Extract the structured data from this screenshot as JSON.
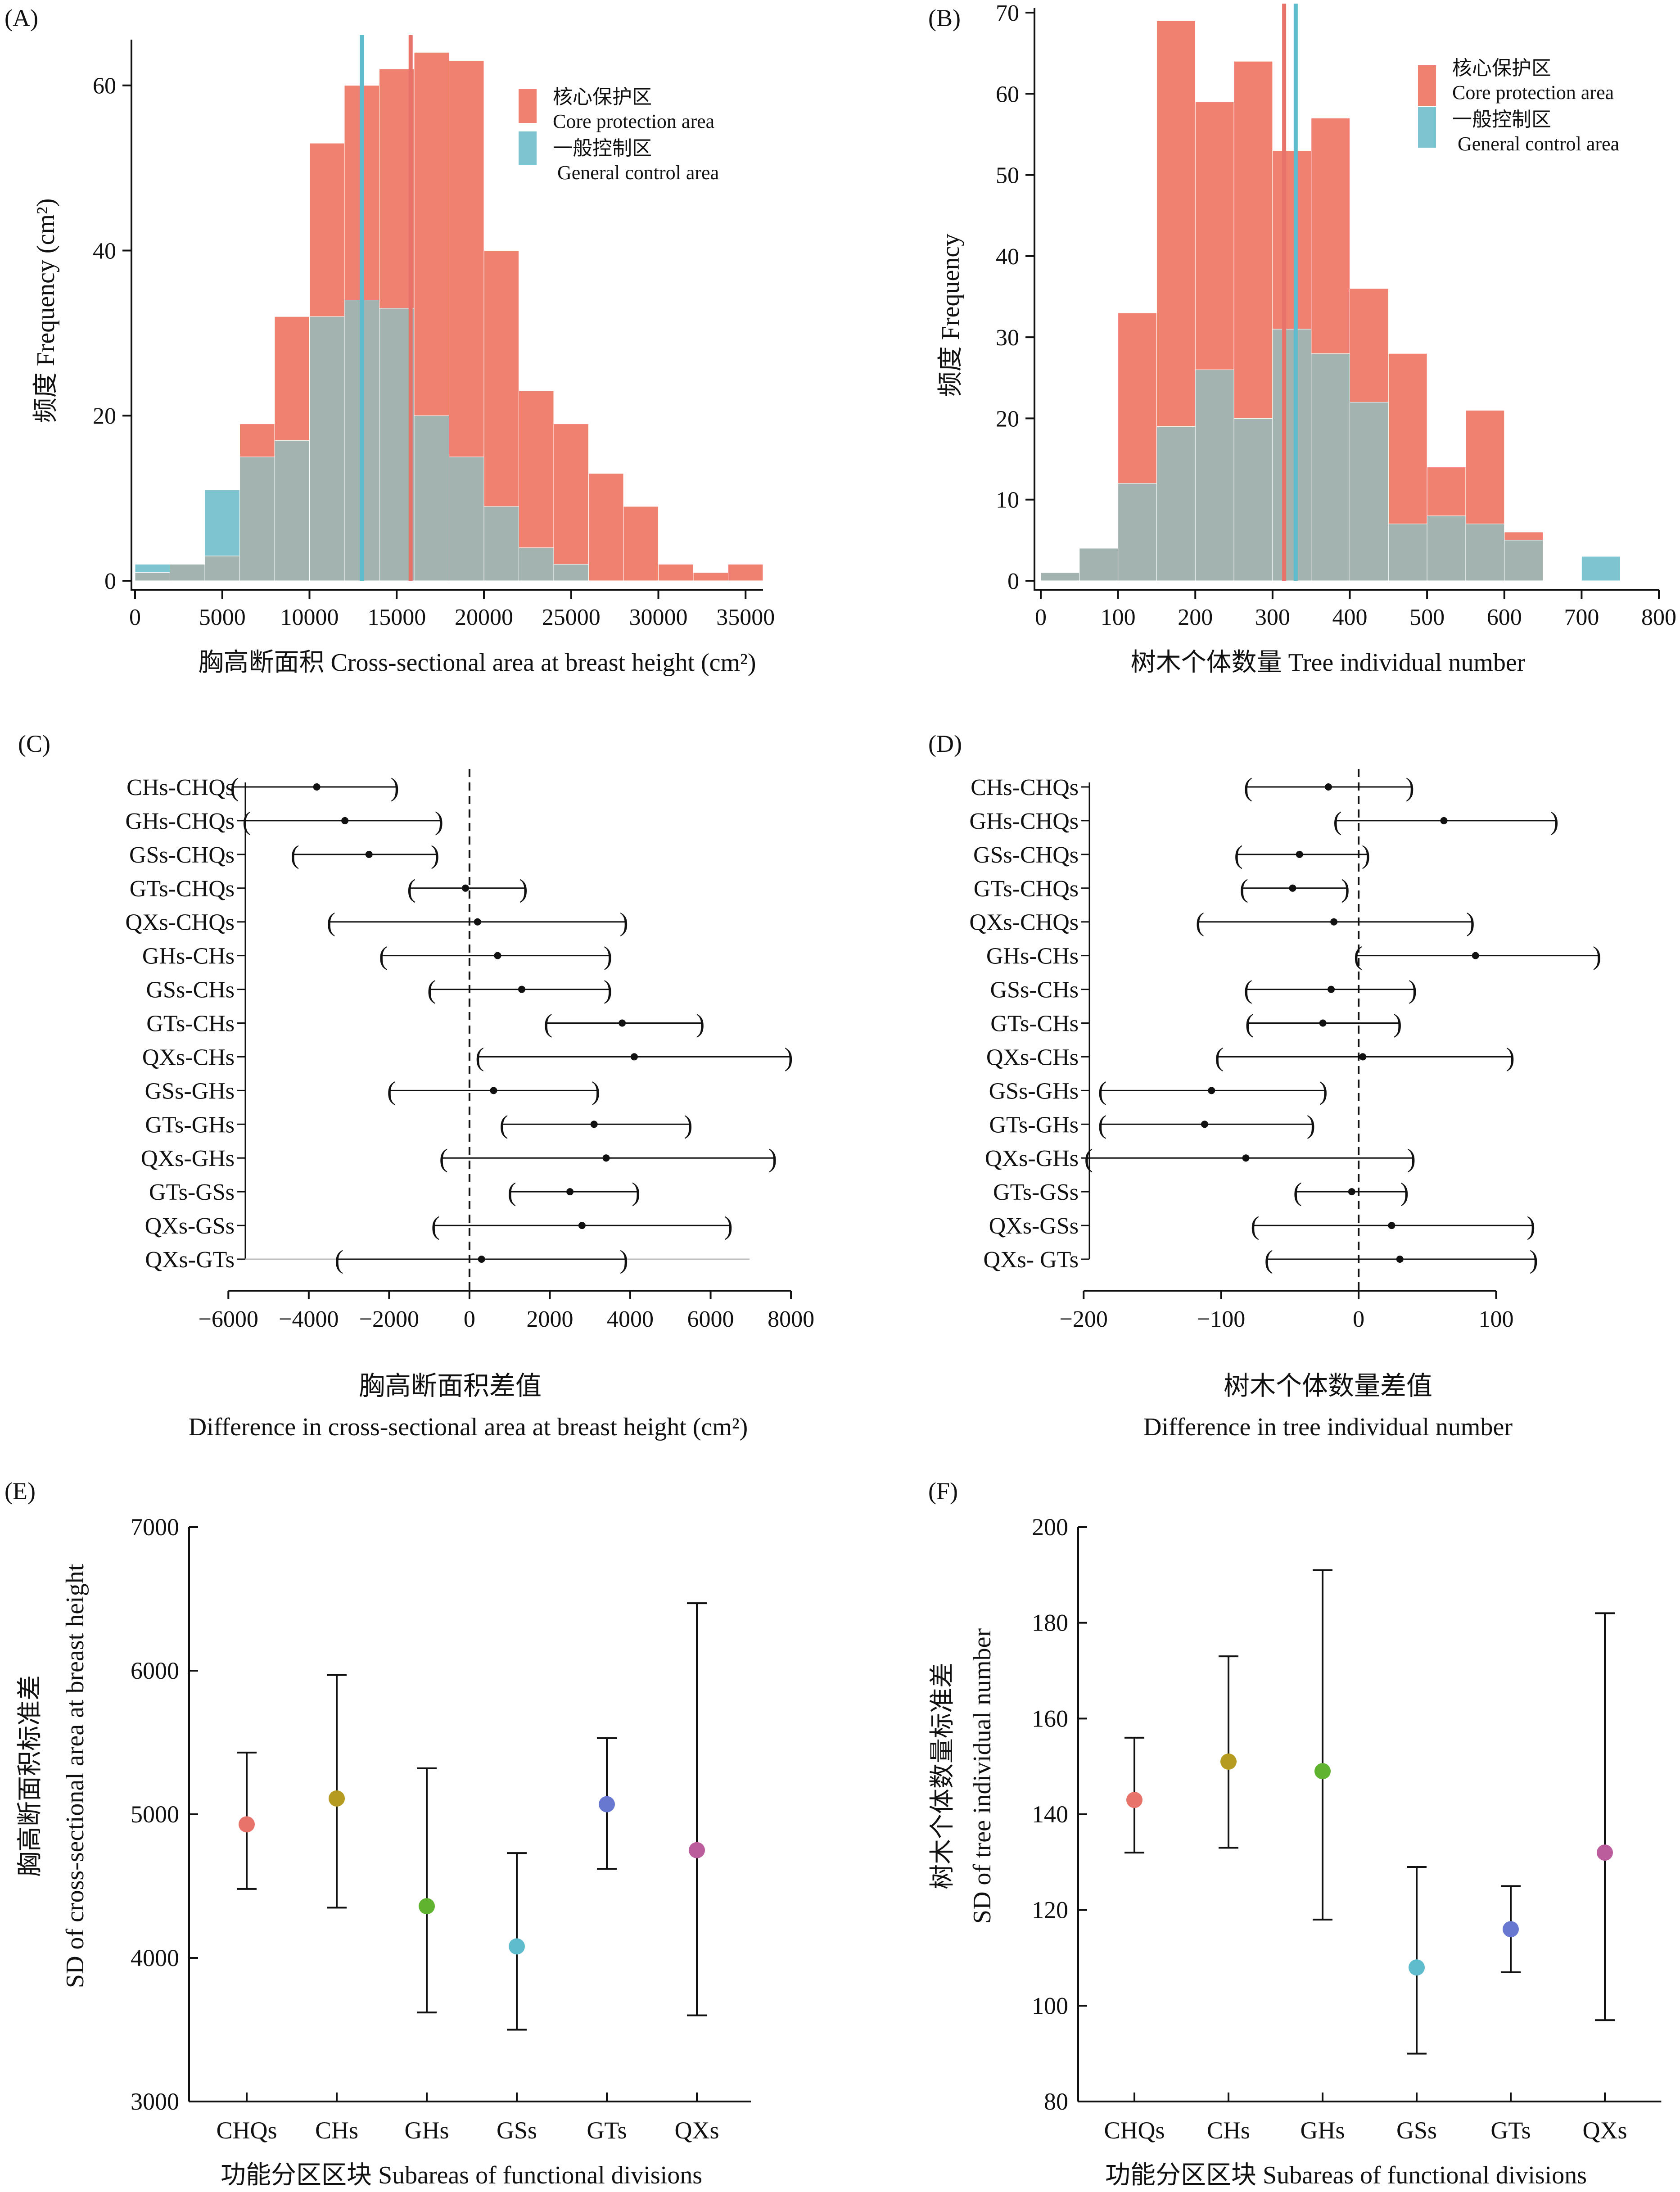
{
  "figure": {
    "colors": {
      "core": "#f08070",
      "core_line": "#e8736a",
      "general": "#7ec3d0",
      "general_line": "#5fbccc",
      "overlap": "#a3b3b0",
      "axis": "#111111"
    }
  },
  "chart_data": [
    {
      "panel": "(A)",
      "type": "histogram",
      "xlabel": "胸高断面积 Cross-sectional area at breast height (cm²)",
      "ylabel": "频度 Frequency (cm²)",
      "xlim": [
        0,
        36000
      ],
      "ylim": [
        0,
        65
      ],
      "xticks": [
        0,
        5000,
        10000,
        15000,
        20000,
        25000,
        30000,
        35000
      ],
      "yticks": [
        0,
        20,
        40,
        60
      ],
      "bin_edges": [
        0,
        2000,
        4000,
        6000,
        8000,
        10000,
        12000,
        14000,
        16000,
        18000,
        20000,
        22000,
        24000,
        26000,
        28000,
        30000,
        32000,
        34000,
        36000
      ],
      "series": [
        {
          "name": "核心保护区",
          "name_en": "Core protection area",
          "counts": [
            1,
            2,
            3,
            19,
            32,
            53,
            60,
            62,
            64,
            63,
            40,
            23,
            19,
            13,
            9,
            2,
            1,
            2
          ],
          "mean": 15800
        },
        {
          "name": "一般控制区",
          "name_en": "General control area",
          "counts": [
            2,
            2,
            11,
            15,
            17,
            32,
            34,
            33,
            20,
            15,
            9,
            4,
            2,
            0,
            0,
            0,
            0,
            0
          ],
          "mean": 13000
        }
      ],
      "legend": "top-right"
    },
    {
      "panel": "(B)",
      "type": "histogram",
      "xlabel": "树木个体数量 Tree individual number",
      "ylabel": "频度 Frequency",
      "xlim": [
        0,
        800
      ],
      "ylim": [
        0,
        70
      ],
      "xticks": [
        0,
        100,
        200,
        300,
        400,
        500,
        600,
        700,
        800
      ],
      "yticks": [
        0,
        10,
        20,
        30,
        40,
        50,
        60,
        70
      ],
      "bin_edges": [
        0,
        50,
        100,
        150,
        200,
        250,
        300,
        350,
        400,
        450,
        500,
        550,
        600,
        650,
        700,
        750
      ],
      "series": [
        {
          "name": "核心保护区",
          "name_en": "Core protection area",
          "counts": [
            1,
            4,
            33,
            69,
            59,
            64,
            53,
            57,
            36,
            28,
            14,
            21,
            6,
            0,
            0
          ],
          "mean": 315
        },
        {
          "name": "一般控制区",
          "name_en": "General control area",
          "counts": [
            1,
            4,
            12,
            19,
            26,
            20,
            31,
            28,
            22,
            7,
            8,
            7,
            5,
            0,
            3
          ],
          "mean": 330
        }
      ],
      "legend": "top-right"
    },
    {
      "panel": "(C)",
      "type": "interval",
      "xlabel": "胸高断面积差值",
      "xlabel_en": "Difference in cross-sectional area at breast height (cm²)",
      "xlim": [
        -7000,
        9500
      ],
      "xticks": [
        -6000,
        -4000,
        -2000,
        0,
        2000,
        4000,
        6000,
        8000
      ],
      "xtick_labels": [
        "−6000",
        "−4000",
        "−2000",
        "0",
        "2000",
        "4000",
        "6000",
        "8000"
      ],
      "refline": 0,
      "categories": [
        "CHs-CHQs",
        "GHs-CHQs",
        "GSs-CHQs",
        "GTs-CHQs",
        "QXs-CHQs",
        "GHs-CHs",
        "GSs-CHs",
        "GTs-CHs",
        "QXs-CHs",
        "GSs-GHs",
        "GTs-GHs",
        "QXs-GHs",
        "GTs-GSs",
        "QXs-GSs",
        "QXs-GTs"
      ],
      "estimate": [
        -3800,
        -3100,
        -2500,
        -100,
        200,
        700,
        1300,
        3800,
        4100,
        600,
        3100,
        3400,
        2500,
        2800,
        300
      ],
      "lower": [
        -5900,
        -5600,
        -4400,
        -1500,
        -3500,
        -2200,
        -1000,
        1900,
        200,
        -2000,
        800,
        -700,
        1000,
        -900,
        -3300
      ],
      "upper": [
        -1800,
        -700,
        -800,
        1400,
        3900,
        3500,
        3500,
        5800,
        8000,
        3200,
        5500,
        7600,
        4200,
        6500,
        3900
      ]
    },
    {
      "panel": "(D)",
      "type": "interval",
      "xlabel": "树木个体数量差值",
      "xlabel_en": "Difference in tree individual number",
      "xlim": [
        -240,
        200
      ],
      "xticks": [
        -200,
        -100,
        0,
        100
      ],
      "xtick_labels": [
        "−200",
        "−100",
        "0",
        "100"
      ],
      "refline": 0,
      "categories": [
        "CHs-CHQs",
        "GHs-CHQs",
        "GSs-CHQs",
        "GTs-CHQs",
        "QXs-CHQs",
        "GHs-CHs",
        "GSs-CHs",
        "GTs-CHs",
        "QXs-CHs",
        "GSs-GHs",
        "GTs-GHs",
        "QXs-GHs",
        "GTs-GSs",
        "QXs-GSs",
        "QXs- GTs"
      ],
      "estimate": [
        -22,
        62,
        -43,
        -48,
        -18,
        85,
        -20,
        -26,
        3,
        -107,
        -112,
        -82,
        -5,
        24,
        30
      ],
      "lower": [
        -82,
        -17,
        -89,
        -85,
        -117,
        -2,
        -82,
        -81,
        -103,
        -188,
        -188,
        -198,
        -46,
        -77,
        -67
      ],
      "upper": [
        39,
        144,
        7,
        -8,
        83,
        175,
        41,
        30,
        112,
        -24,
        -33,
        40,
        35,
        127,
        129
      ]
    },
    {
      "panel": "(E)",
      "type": "scatter",
      "xlabel": "功能分区区块 Subareas of functional divisions",
      "ylabel": "胸高断面积标准差",
      "ylabel_en": "SD of cross-sectional area at breast height",
      "ylim": [
        3000,
        7000
      ],
      "yticks": [
        3000,
        4000,
        5000,
        6000,
        7000
      ],
      "categories": [
        "CHQs",
        "CHs",
        "GHs",
        "GSs",
        "GTs",
        "QXs"
      ],
      "values": [
        4930,
        5110,
        4360,
        4080,
        5070,
        4750
      ],
      "lower": [
        4480,
        4350,
        3620,
        3500,
        4620,
        3600
      ],
      "upper": [
        5430,
        5970,
        5320,
        4730,
        5530,
        6470
      ],
      "point_colors": [
        "#e8736a",
        "#b59b1f",
        "#5fb32e",
        "#5fbccc",
        "#6878d1",
        "#bb5c9c"
      ]
    },
    {
      "panel": "(F)",
      "type": "scatter",
      "xlabel": "功能分区区块 Subareas of functional divisions",
      "ylabel": "树木个体数量标准差",
      "ylabel_en": "SD of tree individual number",
      "ylim": [
        80,
        200
      ],
      "yticks": [
        80,
        100,
        120,
        140,
        160,
        180,
        200
      ],
      "categories": [
        "CHQs",
        "CHs",
        "GHs",
        "GSs",
        "GTs",
        "QXs"
      ],
      "values": [
        143,
        151,
        149,
        108,
        116,
        132
      ],
      "lower": [
        132,
        133,
        118,
        90,
        107,
        97
      ],
      "upper": [
        156,
        173,
        191,
        129,
        125,
        182
      ],
      "point_colors": [
        "#e8736a",
        "#b59b1f",
        "#5fb32e",
        "#5fbccc",
        "#6878d1",
        "#bb5c9c"
      ]
    }
  ]
}
